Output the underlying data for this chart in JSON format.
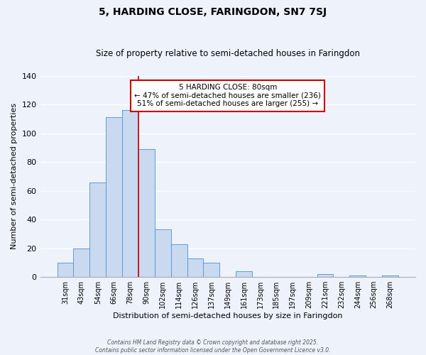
{
  "title": "5, HARDING CLOSE, FARINGDON, SN7 7SJ",
  "subtitle": "Size of property relative to semi-detached houses in Faringdon",
  "xlabel": "Distribution of semi-detached houses by size in Faringdon",
  "ylabel": "Number of semi-detached properties",
  "bar_labels": [
    "31sqm",
    "43sqm",
    "54sqm",
    "66sqm",
    "78sqm",
    "90sqm",
    "102sqm",
    "114sqm",
    "126sqm",
    "137sqm",
    "149sqm",
    "161sqm",
    "173sqm",
    "185sqm",
    "197sqm",
    "209sqm",
    "221sqm",
    "232sqm",
    "244sqm",
    "256sqm",
    "268sqm"
  ],
  "bar_values": [
    10,
    20,
    66,
    111,
    116,
    89,
    33,
    23,
    13,
    10,
    0,
    4,
    0,
    0,
    0,
    0,
    2,
    0,
    1,
    0,
    1
  ],
  "bar_color": "#c8d9f0",
  "bar_edge_color": "#5b9bd5",
  "vline_position": 4.5,
  "vline_color": "#cc0000",
  "annotation_title": "5 HARDING CLOSE: 80sqm",
  "annotation_line2": "← 47% of semi-detached houses are smaller (236)",
  "annotation_line3": "51% of semi-detached houses are larger (255) →",
  "annotation_box_facecolor": "#ffffff",
  "annotation_box_edgecolor": "#cc0000",
  "ylim": [
    0,
    140
  ],
  "yticks": [
    0,
    20,
    40,
    60,
    80,
    100,
    120,
    140
  ],
  "footer1": "Contains HM Land Registry data © Crown copyright and database right 2025.",
  "footer2": "Contains public sector information licensed under the Open Government Licence v3.0.",
  "bg_color": "#eef2fb",
  "grid_color": "#d8e4f0"
}
